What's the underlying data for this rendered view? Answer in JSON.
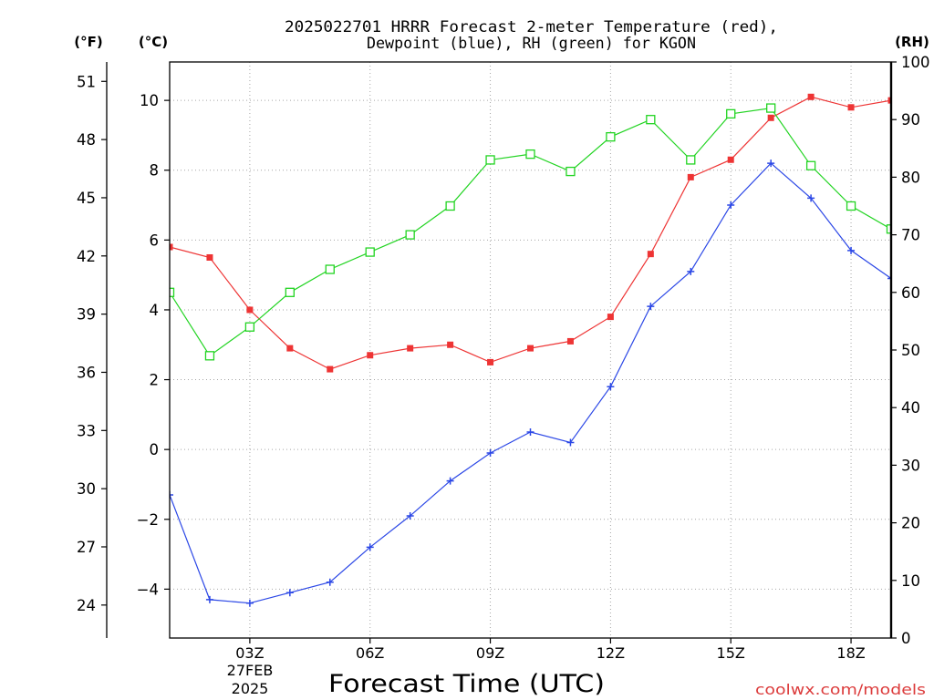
{
  "watermark": "coolwx.com/models",
  "chart_data": {
    "type": "line",
    "title": [
      "2025022701 HRRR Forecast 2-meter Temperature (red),",
      "Dewpoint (blue), RH (green) for KGON"
    ],
    "xlabel": "Forecast Time (UTC)",
    "x": [
      "01Z",
      "02Z",
      "03Z",
      "04Z",
      "05Z",
      "06Z",
      "07Z",
      "08Z",
      "09Z",
      "10Z",
      "11Z",
      "12Z",
      "13Z",
      "14Z",
      "15Z",
      "16Z",
      "17Z",
      "18Z",
      "19Z"
    ],
    "xlim": [
      "01Z",
      "19Z"
    ],
    "x_ticks": [
      "03Z",
      "06Z",
      "09Z",
      "12Z",
      "15Z",
      "18Z"
    ],
    "x_date_label": [
      "27FEB",
      "2025"
    ],
    "grid": true,
    "y_axes": [
      {
        "label": "(°F)",
        "ticks": [
          24,
          27,
          30,
          33,
          36,
          39,
          42,
          45,
          48,
          51
        ],
        "range": [
          22.3,
          52.0
        ]
      },
      {
        "label": "(°C)",
        "ticks": [
          -4,
          -2,
          0,
          2,
          4,
          6,
          8,
          10
        ],
        "tick_labels": [
          "−4",
          "−2",
          "0",
          "2",
          "4",
          "6",
          "8",
          "10"
        ],
        "range": [
          -5.4,
          11.1
        ]
      },
      {
        "label": "(RH)",
        "ticks": [
          0,
          10,
          20,
          30,
          40,
          50,
          60,
          70,
          80,
          90,
          100
        ],
        "range": [
          0,
          100
        ]
      }
    ],
    "series": [
      {
        "name": "Temperature",
        "y_axis": 1,
        "color": "#ee3434",
        "marker": "filled-square",
        "values": [
          5.8,
          5.5,
          4.0,
          2.9,
          2.3,
          2.7,
          2.9,
          3.0,
          2.5,
          2.9,
          3.1,
          3.8,
          5.6,
          7.8,
          8.3,
          9.5,
          10.1,
          9.8,
          10.0
        ]
      },
      {
        "name": "Dewpoint",
        "y_axis": 1,
        "color": "#2b47e6",
        "marker": "plus",
        "values": [
          -1.3,
          -4.3,
          -4.4,
          -4.1,
          -3.8,
          -2.8,
          -1.9,
          -0.9,
          -0.1,
          0.5,
          0.2,
          1.8,
          4.1,
          5.1,
          7.0,
          8.2,
          7.2,
          5.7,
          4.9
        ]
      },
      {
        "name": "RH",
        "y_axis": 2,
        "color": "#22d422",
        "marker": "hollow-square",
        "values": [
          60,
          49,
          54,
          60,
          64,
          67,
          70,
          75,
          83,
          84,
          81,
          87,
          90,
          83,
          91,
          92,
          82,
          75,
          71
        ]
      }
    ]
  }
}
